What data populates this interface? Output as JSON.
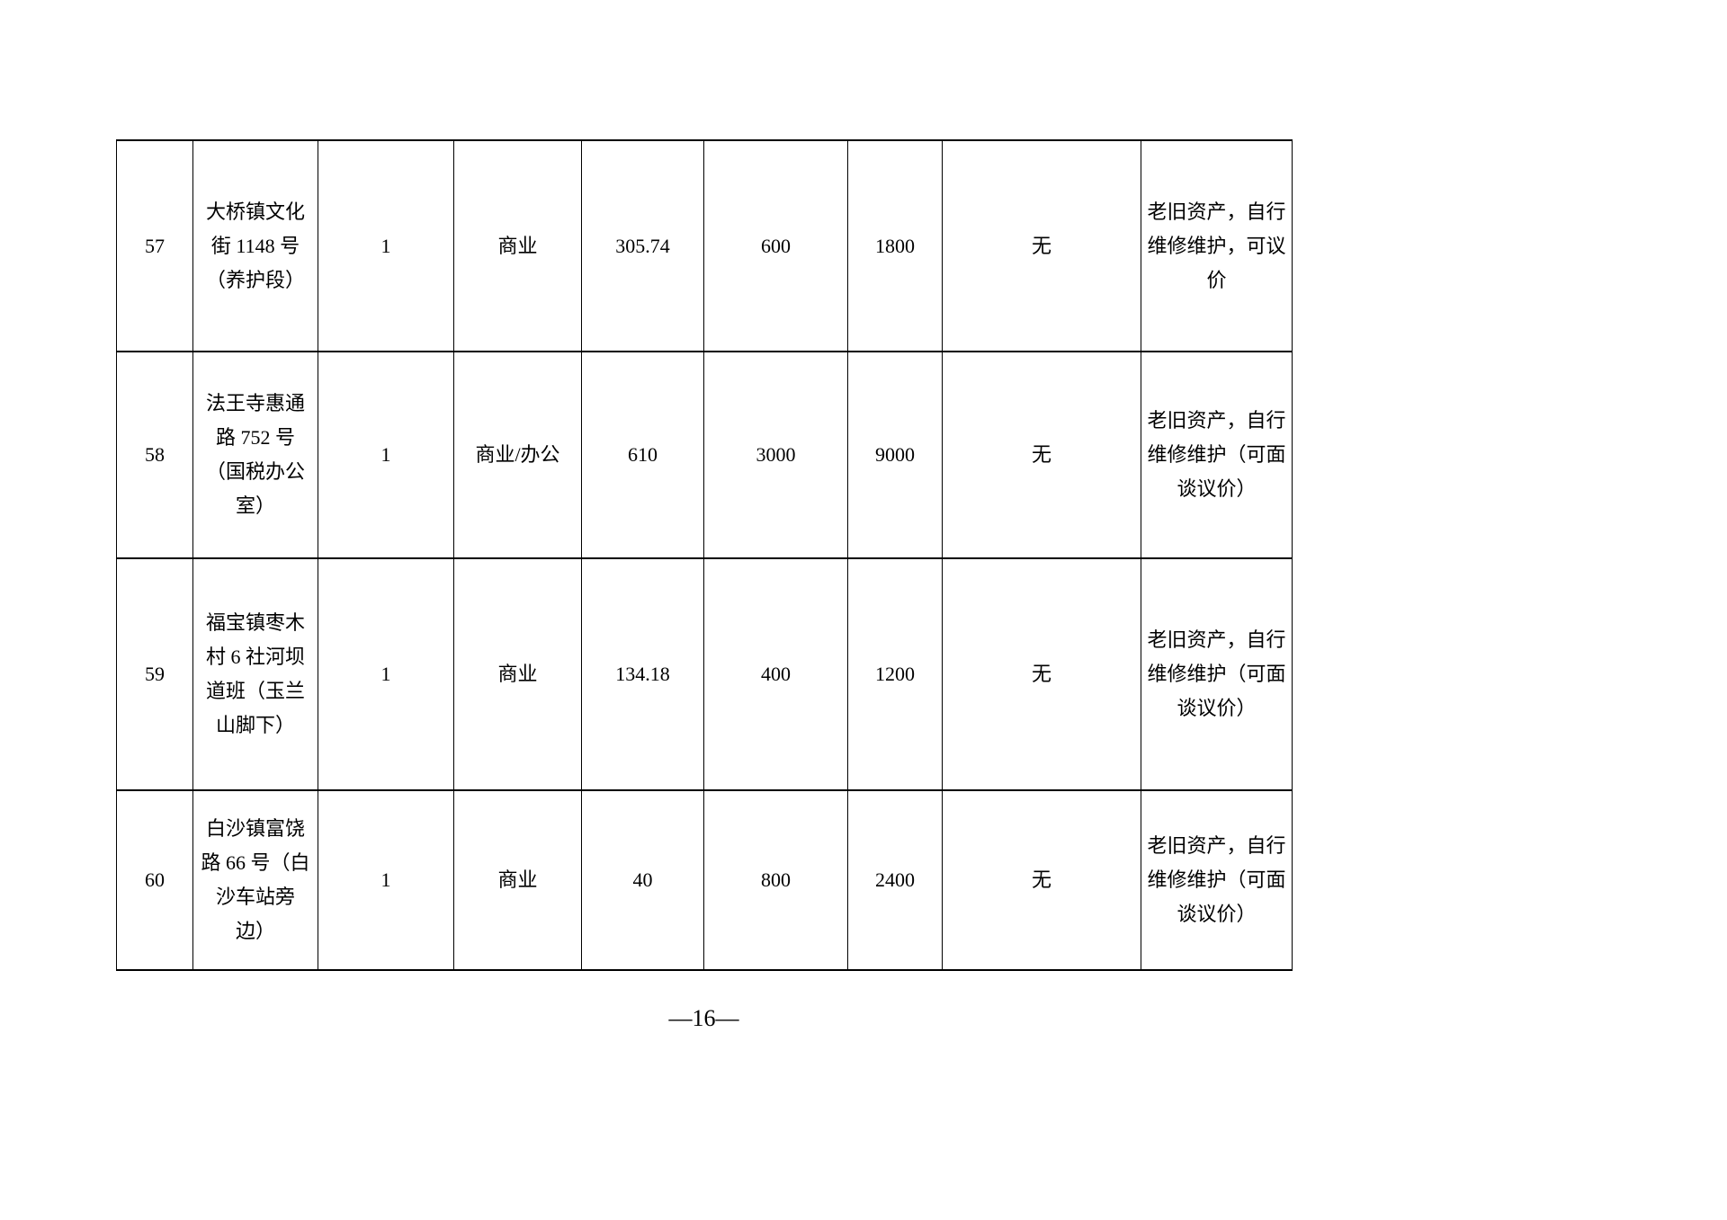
{
  "page": {
    "background": "#ffffff",
    "footer_page_number": "—16—"
  },
  "table": {
    "border_color": "#000000",
    "cell_keys": [
      "index",
      "location",
      "quantity",
      "usage",
      "area",
      "amount1",
      "amount2",
      "other",
      "remarks"
    ],
    "rows": [
      {
        "index": "57",
        "location": "大桥镇文化\n街 1148 号\n（养护段）",
        "quantity": "1",
        "usage": "商业",
        "area": "305.74",
        "amount1": "600",
        "amount2": "1800",
        "other": "无",
        "remarks": "老旧资产，自行\n维修维护，可议\n价"
      },
      {
        "index": "58",
        "location": "法王寺惠通\n路 752 号\n（国税办公\n室）",
        "quantity": "1",
        "usage": "商业/办公",
        "area": "610",
        "amount1": "3000",
        "amount2": "9000",
        "other": "无",
        "remarks": "老旧资产，自行\n维修维护（可面\n谈议价）"
      },
      {
        "index": "59",
        "location": "福宝镇枣木\n村 6 社河坝\n道班（玉兰\n山脚下）",
        "quantity": "1",
        "usage": "商业",
        "area": "134.18",
        "amount1": "400",
        "amount2": "1200",
        "other": "无",
        "remarks": "老旧资产，自行\n维修维护（可面\n谈议价）"
      },
      {
        "index": "60",
        "location": "白沙镇富饶\n路 66 号（白\n沙车站旁\n边）",
        "quantity": "1",
        "usage": "商业",
        "area": "40",
        "amount1": "800",
        "amount2": "2400",
        "other": "无",
        "remarks": "老旧资产，自行\n维修维护（可面\n谈议价）"
      }
    ]
  }
}
